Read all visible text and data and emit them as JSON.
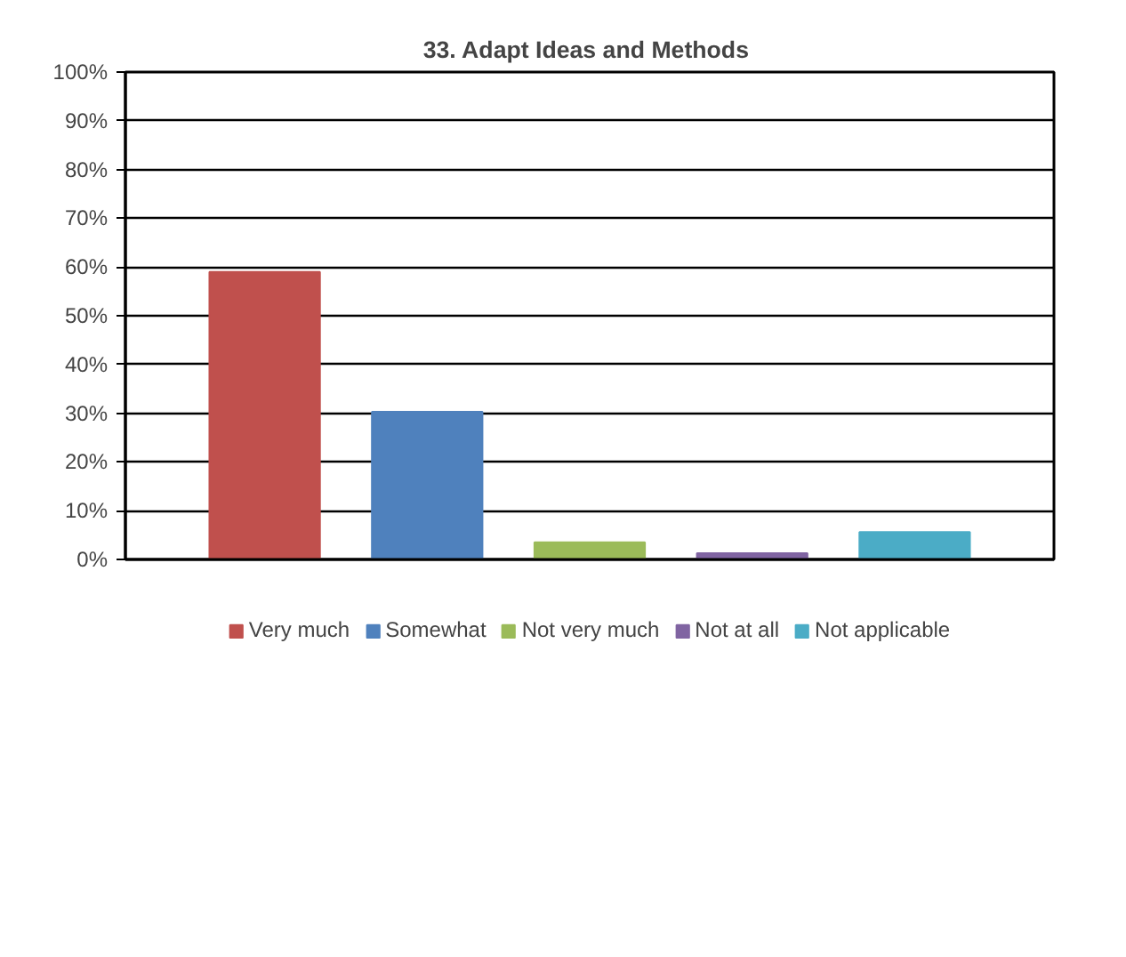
{
  "chart_data": {
    "type": "bar",
    "title": "33. Adapt  Ideas and Methods",
    "categories": [
      null
    ],
    "series": [
      {
        "name": "Very much",
        "color": "#c0504d",
        "values": [
          59.0
        ]
      },
      {
        "name": "Somewhat",
        "color": "#4f81bd",
        "values": [
          30.3
        ]
      },
      {
        "name": "Not very much",
        "color": "#9bbb59",
        "values": [
          3.5
        ]
      },
      {
        "name": "Not at all",
        "color": "#8064a2",
        "values": [
          1.3
        ]
      },
      {
        "name": "Not applicable",
        "color": "#4bacc6",
        "values": [
          5.6
        ]
      }
    ],
    "ylim": [
      0,
      100
    ],
    "yticks": [
      {
        "value": 0,
        "label": "0%"
      },
      {
        "value": 10,
        "label": "10%"
      },
      {
        "value": 20,
        "label": "20%"
      },
      {
        "value": 30,
        "label": "30%"
      },
      {
        "value": 40,
        "label": "40%"
      },
      {
        "value": 50,
        "label": "50%"
      },
      {
        "value": 60,
        "label": "60%"
      },
      {
        "value": 70,
        "label": "70%"
      },
      {
        "value": 80,
        "label": "80%"
      },
      {
        "value": 90,
        "label": "90%"
      },
      {
        "value": 100,
        "label": "100%"
      }
    ],
    "grid": "y",
    "legend": "bottom",
    "tick_labels": "y"
  }
}
